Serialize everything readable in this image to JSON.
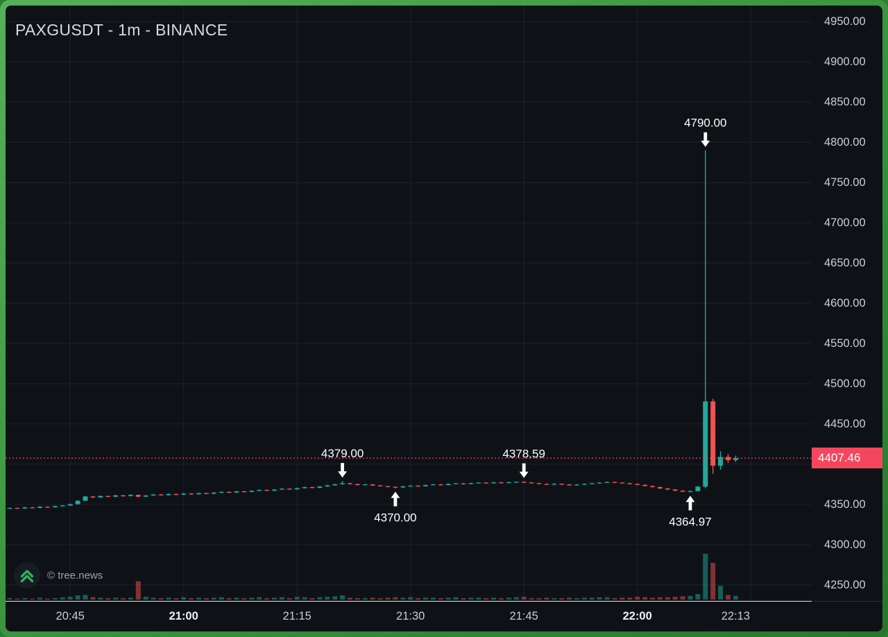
{
  "header": {
    "title": "PAXGUSDT - 1m - BINANCE"
  },
  "watermark": {
    "label": "© tree.news"
  },
  "price_axis": {
    "labels": [
      "4950.00",
      "4900.00",
      "4850.00",
      "4800.00",
      "4750.00",
      "4700.00",
      "4650.00",
      "4600.00",
      "4550.00",
      "4500.00",
      "4450.00",
      "4350.00",
      "4300.00",
      "4250.00"
    ],
    "tag_value": "4407.46",
    "tag_color": "#f4465d"
  },
  "time_axis": {
    "ticks": [
      {
        "label": "20:45",
        "bold": false
      },
      {
        "label": "21:00",
        "bold": true
      },
      {
        "label": "21:15",
        "bold": false
      },
      {
        "label": "21:30",
        "bold": false
      },
      {
        "label": "21:45",
        "bold": false
      },
      {
        "label": "22:00",
        "bold": true
      },
      {
        "label": "22:13",
        "bold": false
      }
    ]
  },
  "colors": {
    "background": "#0e1217",
    "grid": "#1c222d",
    "up": "#26a69a",
    "down": "#ef5350",
    "price_line": "#f4465d",
    "axis_text": "#c9ced8",
    "annotation": "#ffffff",
    "watermark_icon_green": "#30b15c"
  },
  "chart_data": {
    "type": "candlestick",
    "title": "PAXGUSDT - 1m - BINANCE",
    "symbol": "PAXGUSDT",
    "interval": "1m",
    "exchange": "BINANCE",
    "current_price": 4407.46,
    "time_start": "20:37",
    "scale": {
      "price_at_top": 4970,
      "price_at_bottom": 4230
    },
    "y_gridlines": [
      4250,
      4300,
      4350,
      4400,
      4450,
      4500,
      4550,
      4600,
      4650,
      4700,
      4750,
      4800,
      4850,
      4900,
      4950
    ],
    "x_gridlines": [
      "20:45",
      "21:00",
      "21:15",
      "21:30",
      "21:45",
      "22:00",
      "22:15"
    ],
    "annotations": [
      {
        "time": "22:09",
        "price": 4790.0,
        "label": "4790.00",
        "placement": "above"
      },
      {
        "time": "21:21",
        "price": 4379.0,
        "label": "4379.00",
        "placement": "above"
      },
      {
        "time": "21:45",
        "price": 4378.59,
        "label": "4378.59",
        "placement": "above"
      },
      {
        "time": "21:28",
        "price": 4370.0,
        "label": "4370.00",
        "placement": "below"
      },
      {
        "time": "22:07",
        "price": 4364.97,
        "label": "4364.97",
        "placement": "below"
      }
    ],
    "columns": [
      "time",
      "open",
      "high",
      "low",
      "close",
      "volume"
    ],
    "candles": [
      [
        "20:37",
        4345.0,
        4346.3,
        4344.2,
        4345.5,
        3
      ],
      [
        "20:38",
        4345.5,
        4346.0,
        4344.1,
        4344.8,
        2
      ],
      [
        "20:39",
        4344.8,
        4346.9,
        4344.5,
        4346.2,
        3
      ],
      [
        "20:40",
        4346.2,
        4346.8,
        4345.0,
        4345.6,
        2
      ],
      [
        "20:41",
        4345.6,
        4347.8,
        4345.2,
        4347.0,
        4
      ],
      [
        "20:42",
        4347.0,
        4347.6,
        4345.8,
        4346.4,
        2
      ],
      [
        "20:43",
        4346.4,
        4348.5,
        4346.0,
        4347.8,
        3
      ],
      [
        "20:44",
        4347.8,
        4349.2,
        4347.2,
        4348.5,
        5
      ],
      [
        "20:45",
        4348.5,
        4350.9,
        4348.0,
        4350.2,
        6
      ],
      [
        "20:46",
        4350.2,
        4355.2,
        4349.8,
        4354.5,
        9
      ],
      [
        "20:47",
        4354.5,
        4360.6,
        4354.0,
        4359.8,
        10
      ],
      [
        "20:48",
        4359.8,
        4360.4,
        4357.9,
        4358.6,
        5
      ],
      [
        "20:49",
        4358.6,
        4361.1,
        4358.2,
        4360.4,
        4
      ],
      [
        "20:50",
        4360.4,
        4361.0,
        4358.8,
        4359.5,
        3
      ],
      [
        "20:51",
        4359.5,
        4361.9,
        4359.0,
        4361.2,
        4
      ],
      [
        "20:52",
        4361.2,
        4361.8,
        4359.6,
        4360.3,
        3
      ],
      [
        "20:53",
        4360.3,
        4362.5,
        4359.9,
        4361.8,
        4
      ],
      [
        "20:54",
        4361.8,
        4362.2,
        4358.7,
        4359.6,
        40
      ],
      [
        "20:55",
        4359.6,
        4361.7,
        4359.1,
        4361.0,
        6
      ],
      [
        "20:56",
        4361.0,
        4363.0,
        4360.6,
        4362.3,
        4
      ],
      [
        "20:57",
        4362.3,
        4362.9,
        4360.8,
        4361.4,
        3
      ],
      [
        "20:58",
        4361.4,
        4363.5,
        4361.0,
        4362.8,
        4
      ],
      [
        "20:59",
        4362.8,
        4363.3,
        4361.3,
        4362.0,
        3
      ],
      [
        "21:00",
        4362.0,
        4364.1,
        4361.6,
        4363.4,
        5
      ],
      [
        "21:01",
        4363.4,
        4364.0,
        4362.0,
        4362.6,
        3
      ],
      [
        "21:02",
        4362.6,
        4364.7,
        4362.2,
        4364.0,
        4
      ],
      [
        "21:03",
        4364.0,
        4364.6,
        4362.6,
        4363.2,
        3
      ],
      [
        "21:04",
        4363.2,
        4365.3,
        4362.8,
        4364.6,
        4
      ],
      [
        "21:05",
        4364.6,
        4366.2,
        4364.1,
        4365.5,
        5
      ],
      [
        "21:06",
        4365.5,
        4366.1,
        4364.1,
        4364.7,
        3
      ],
      [
        "21:07",
        4364.7,
        4366.9,
        4364.3,
        4366.2,
        4
      ],
      [
        "21:08",
        4366.2,
        4366.8,
        4364.8,
        4365.4,
        3
      ],
      [
        "21:09",
        4365.4,
        4367.5,
        4365.0,
        4366.8,
        4
      ],
      [
        "21:10",
        4366.8,
        4368.6,
        4366.4,
        4367.9,
        5
      ],
      [
        "21:11",
        4367.9,
        4368.5,
        4366.4,
        4367.0,
        3
      ],
      [
        "21:12",
        4367.0,
        4369.1,
        4366.6,
        4368.4,
        4
      ],
      [
        "21:13",
        4368.4,
        4370.2,
        4368.0,
        4369.5,
        5
      ],
      [
        "21:14",
        4369.5,
        4370.1,
        4368.0,
        4368.6,
        3
      ],
      [
        "21:15",
        4368.6,
        4370.8,
        4368.2,
        4370.1,
        6
      ],
      [
        "21:16",
        4370.1,
        4372.1,
        4369.7,
        4371.4,
        5
      ],
      [
        "21:17",
        4371.4,
        4372.0,
        4369.9,
        4370.5,
        3
      ],
      [
        "21:18",
        4370.5,
        4372.9,
        4370.1,
        4372.2,
        5
      ],
      [
        "21:19",
        4372.2,
        4374.3,
        4371.8,
        4373.6,
        6
      ],
      [
        "21:20",
        4373.6,
        4375.7,
        4373.2,
        4375.0,
        7
      ],
      [
        "21:21",
        4375.0,
        4379.0,
        4374.6,
        4376.3,
        9
      ],
      [
        "21:22",
        4376.3,
        4376.9,
        4374.6,
        4375.2,
        4
      ],
      [
        "21:23",
        4375.2,
        4375.8,
        4373.4,
        4374.0,
        3
      ],
      [
        "21:24",
        4374.0,
        4375.5,
        4373.6,
        4374.8,
        3
      ],
      [
        "21:25",
        4374.8,
        4375.4,
        4372.9,
        4373.5,
        4
      ],
      [
        "21:26",
        4373.5,
        4374.1,
        4372.0,
        4372.6,
        3
      ],
      [
        "21:27",
        4372.6,
        4373.2,
        4371.2,
        4371.8,
        4
      ],
      [
        "21:28",
        4371.8,
        4372.4,
        4370.0,
        4371.0,
        5
      ],
      [
        "21:29",
        4371.0,
        4373.1,
        4370.6,
        4372.4,
        4
      ],
      [
        "21:30",
        4372.4,
        4373.9,
        4372.0,
        4373.2,
        5
      ],
      [
        "21:31",
        4373.2,
        4373.8,
        4371.9,
        4372.5,
        3
      ],
      [
        "21:32",
        4372.5,
        4374.7,
        4372.1,
        4374.0,
        4
      ],
      [
        "21:33",
        4374.0,
        4375.5,
        4373.6,
        4374.8,
        4
      ],
      [
        "21:34",
        4374.8,
        4375.4,
        4373.4,
        4374.0,
        3
      ],
      [
        "21:35",
        4374.0,
        4376.0,
        4373.6,
        4375.3,
        4
      ],
      [
        "21:36",
        4375.3,
        4376.7,
        4374.9,
        4376.0,
        5
      ],
      [
        "21:37",
        4376.0,
        4376.6,
        4374.6,
        4375.2,
        3
      ],
      [
        "21:38",
        4375.2,
        4377.1,
        4374.8,
        4376.4,
        4
      ],
      [
        "21:39",
        4376.4,
        4377.7,
        4376.0,
        4377.0,
        4
      ],
      [
        "21:40",
        4377.0,
        4377.6,
        4375.6,
        4376.2,
        3
      ],
      [
        "21:41",
        4376.2,
        4378.0,
        4375.8,
        4377.3,
        4
      ],
      [
        "21:42",
        4377.3,
        4377.9,
        4375.9,
        4376.5,
        3
      ],
      [
        "21:43",
        4376.5,
        4378.2,
        4376.1,
        4377.5,
        4
      ],
      [
        "21:44",
        4377.5,
        4378.5,
        4377.1,
        4378.0,
        5
      ],
      [
        "21:45",
        4378.0,
        4378.59,
        4376.6,
        4377.2,
        6
      ],
      [
        "21:46",
        4377.2,
        4377.8,
        4375.7,
        4376.3,
        3
      ],
      [
        "21:47",
        4376.3,
        4376.9,
        4374.8,
        4375.4,
        3
      ],
      [
        "21:48",
        4375.4,
        4376.0,
        4374.0,
        4374.6,
        4
      ],
      [
        "21:49",
        4374.6,
        4376.2,
        4374.2,
        4375.5,
        3
      ],
      [
        "21:50",
        4375.5,
        4376.1,
        4374.1,
        4374.7,
        3
      ],
      [
        "21:51",
        4374.7,
        4375.3,
        4373.2,
        4373.8,
        4
      ],
      [
        "21:52",
        4373.8,
        4375.3,
        4373.4,
        4374.6,
        3
      ],
      [
        "21:53",
        4374.6,
        4376.1,
        4374.2,
        4375.4,
        4
      ],
      [
        "21:54",
        4375.4,
        4376.9,
        4375.0,
        4376.2,
        4
      ],
      [
        "21:55",
        4376.2,
        4377.7,
        4375.8,
        4377.0,
        5
      ],
      [
        "21:56",
        4377.0,
        4378.4,
        4376.6,
        4377.8,
        5
      ],
      [
        "21:57",
        4377.8,
        4378.4,
        4376.4,
        4377.0,
        3
      ],
      [
        "21:58",
        4377.0,
        4377.6,
        4375.6,
        4376.2,
        4
      ],
      [
        "21:59",
        4376.2,
        4376.8,
        4374.7,
        4375.3,
        4
      ],
      [
        "22:00",
        4375.3,
        4375.9,
        4373.6,
        4374.2,
        6
      ],
      [
        "22:01",
        4374.2,
        4374.8,
        4372.2,
        4372.8,
        5
      ],
      [
        "22:02",
        4372.8,
        4373.4,
        4370.9,
        4371.5,
        4
      ],
      [
        "22:03",
        4371.5,
        4372.1,
        4369.2,
        4369.8,
        5
      ],
      [
        "22:04",
        4369.8,
        4370.4,
        4367.8,
        4368.4,
        5
      ],
      [
        "22:05",
        4368.4,
        4369.0,
        4366.4,
        4367.0,
        6
      ],
      [
        "22:06",
        4367.0,
        4367.6,
        4365.2,
        4365.8,
        7
      ],
      [
        "22:07",
        4365.8,
        4367.3,
        4364.97,
        4366.5,
        8
      ],
      [
        "22:08",
        4366.5,
        4372.8,
        4366.1,
        4372.0,
        12
      ],
      [
        "22:09",
        4372.0,
        4790.0,
        4370.0,
        4478.0,
        100
      ],
      [
        "22:10",
        4478.0,
        4481.0,
        4388.0,
        4398.0,
        80
      ],
      [
        "22:11",
        4398.0,
        4416.0,
        4393.0,
        4409.0,
        30
      ],
      [
        "22:12",
        4409.0,
        4412.5,
        4401.5,
        4405.0,
        10
      ],
      [
        "22:13",
        4405.0,
        4410.5,
        4402.5,
        4407.46,
        8
      ]
    ]
  }
}
